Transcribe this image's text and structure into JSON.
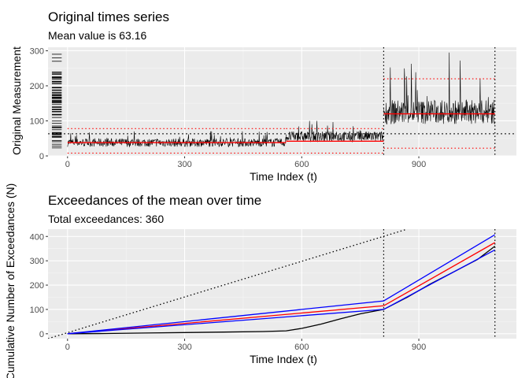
{
  "chart_data": [
    {
      "type": "line",
      "title": "Original times series",
      "subtitle": "Mean value is 63.16",
      "xlabel": "Time Index (t)",
      "ylabel": "Original Measurement",
      "xticks": [
        0,
        300,
        600,
        900
      ],
      "yticks": [
        0,
        100,
        200,
        300
      ],
      "xlim": [
        -50,
        1150
      ],
      "ylim": [
        0,
        310
      ],
      "grid": true,
      "mean_line": 63.16,
      "change_points": [
        810,
        1095
      ],
      "segments": [
        {
          "start": 0,
          "end": 560,
          "mean": 38,
          "lower": 8,
          "upper": 78
        },
        {
          "start": 560,
          "end": 810,
          "mean": 42,
          "lower": 8,
          "upper": 78
        },
        {
          "start": 810,
          "end": 1095,
          "mean": 120,
          "lower": 22,
          "upper": 220
        }
      ],
      "series": [
        {
          "name": "",
          "level": 38,
          "spread": 12,
          "x_range": [
            0,
            560
          ],
          "peaks_max": 70
        },
        {
          "name": "",
          "level": 55,
          "spread": 15,
          "x_range": [
            560,
            810
          ],
          "peaks_max": 100
        },
        {
          "name": "",
          "level": 125,
          "spread": 35,
          "x_range": [
            810,
            1095
          ],
          "peaks_max": 295
        }
      ]
    },
    {
      "type": "line",
      "title": "Exceedances of the mean over time",
      "subtitle": "Total exceedances: 360",
      "xlabel": "Time Index (t)",
      "ylabel": "Cumulative Number of Exceedances (N)",
      "xticks": [
        0,
        300,
        600,
        900
      ],
      "yticks": [
        0,
        100,
        200,
        300,
        400
      ],
      "xlim": [
        -50,
        1150
      ],
      "ylim": [
        -20,
        430
      ],
      "grid": true,
      "change_points": [
        810,
        1095
      ],
      "series": [
        {
          "name": "",
          "color": "#000000",
          "x": [
            0,
            100,
            200,
            300,
            400,
            500,
            560,
            600,
            650,
            700,
            750,
            810,
            870,
            930,
            990,
            1050,
            1095
          ],
          "y": [
            0,
            1,
            3,
            5,
            7,
            9,
            12,
            22,
            40,
            62,
            82,
            100,
            150,
            205,
            255,
            305,
            360
          ]
        },
        {
          "name": "",
          "color": "#ff0000",
          "x": [
            0,
            810,
            1095
          ],
          "y": [
            0,
            115,
            375
          ]
        },
        {
          "name": "",
          "color": "#0000ff",
          "x": [
            0,
            810,
            1095
          ],
          "y": [
            0,
            135,
            407
          ]
        },
        {
          "name": "",
          "color": "#0000ff",
          "x": [
            0,
            810,
            1095
          ],
          "y": [
            0,
            100,
            345
          ]
        },
        {
          "name": "",
          "color": "#000000",
          "style": "dotted",
          "x": [
            -50,
            870
          ],
          "y": [
            -20,
            430
          ]
        }
      ]
    }
  ]
}
